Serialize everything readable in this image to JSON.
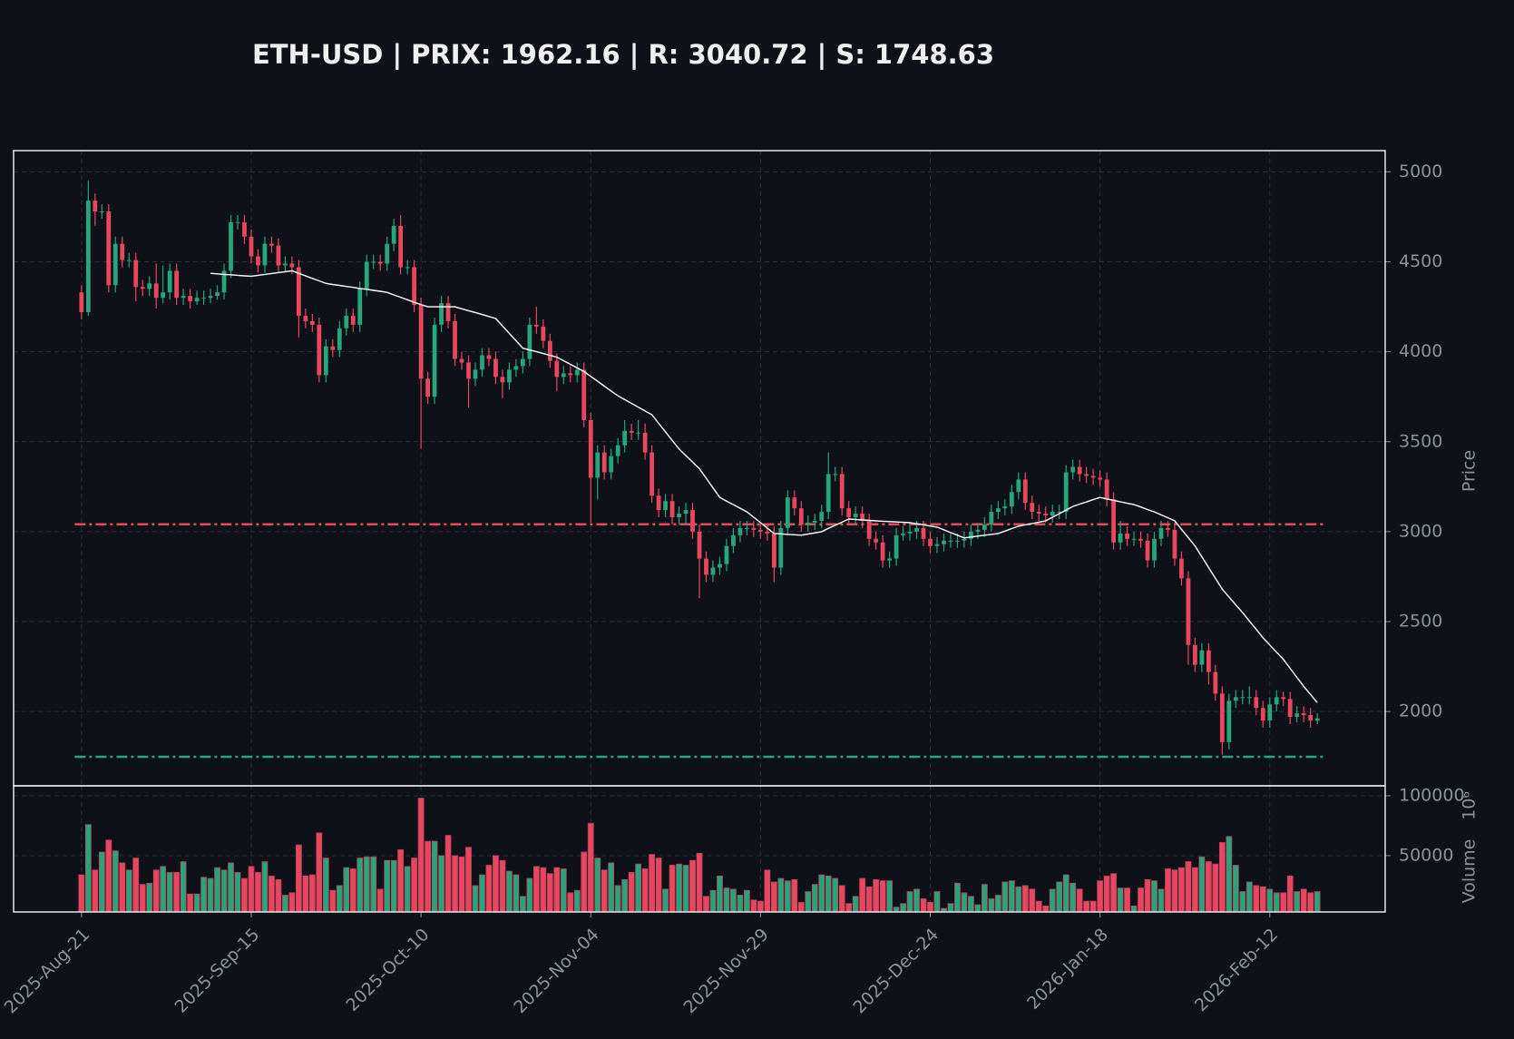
{
  "chart_data": {
    "type": "candlestick",
    "title": "ETH-USD | PRIX: 1962.16 | R: 3040.72 | S: 1748.63",
    "x": [
      "2025-08-21",
      "2025-08-22",
      "2025-08-23",
      "2025-08-24",
      "2025-08-25",
      "2025-08-26",
      "2025-08-27",
      "2025-08-28",
      "2025-08-29",
      "2025-08-30",
      "2025-08-31",
      "2025-09-01",
      "2025-09-02",
      "2025-09-03",
      "2025-09-04",
      "2025-09-05",
      "2025-09-06",
      "2025-09-07",
      "2025-09-08",
      "2025-09-09",
      "2025-09-10",
      "2025-09-11",
      "2025-09-12",
      "2025-09-13",
      "2025-09-14",
      "2025-09-15",
      "2025-09-16",
      "2025-09-17",
      "2025-09-18",
      "2025-09-19",
      "2025-09-20",
      "2025-09-21",
      "2025-09-22",
      "2025-09-23",
      "2025-09-24",
      "2025-09-25",
      "2025-09-26",
      "2025-09-27",
      "2025-09-28",
      "2025-09-29",
      "2025-09-30",
      "2025-10-01",
      "2025-10-02",
      "2025-10-03",
      "2025-10-04",
      "2025-10-05",
      "2025-10-06",
      "2025-10-07",
      "2025-10-08",
      "2025-10-09",
      "2025-10-10",
      "2025-10-11",
      "2025-10-12",
      "2025-10-13",
      "2025-10-14",
      "2025-10-15",
      "2025-10-16",
      "2025-10-17",
      "2025-10-18",
      "2025-10-19",
      "2025-10-20",
      "2025-10-21",
      "2025-10-22",
      "2025-10-23",
      "2025-10-24",
      "2025-10-25",
      "2025-10-26",
      "2025-10-27",
      "2025-10-28",
      "2025-10-29",
      "2025-10-30",
      "2025-10-31",
      "2025-11-01",
      "2025-11-02",
      "2025-11-03",
      "2025-11-04",
      "2025-11-05",
      "2025-11-06",
      "2025-11-07",
      "2025-11-08",
      "2025-11-09",
      "2025-11-10",
      "2025-11-11",
      "2025-11-12",
      "2025-11-13",
      "2025-11-14",
      "2025-11-15",
      "2025-11-16",
      "2025-11-17",
      "2025-11-18",
      "2025-11-19",
      "2025-11-20",
      "2025-11-21",
      "2025-11-22",
      "2025-11-23",
      "2025-11-24",
      "2025-11-25",
      "2025-11-26",
      "2025-11-27",
      "2025-11-28",
      "2025-11-29",
      "2025-11-30",
      "2025-12-01",
      "2025-12-02",
      "2025-12-03",
      "2025-12-04",
      "2025-12-05",
      "2025-12-06",
      "2025-12-07",
      "2025-12-08",
      "2025-12-09",
      "2025-12-10",
      "2025-12-11",
      "2025-12-12",
      "2025-12-13",
      "2025-12-14",
      "2025-12-15",
      "2025-12-16",
      "2025-12-17",
      "2025-12-18",
      "2025-12-19",
      "2025-12-20",
      "2025-12-21",
      "2025-12-22",
      "2025-12-23",
      "2025-12-24",
      "2025-12-25",
      "2025-12-26",
      "2025-12-27",
      "2025-12-28",
      "2025-12-29",
      "2025-12-30",
      "2025-12-31",
      "2026-01-01",
      "2026-01-02",
      "2026-01-03",
      "2026-01-04",
      "2026-01-05",
      "2026-01-06",
      "2026-01-07",
      "2026-01-08",
      "2026-01-09",
      "2026-01-10",
      "2026-01-11",
      "2026-01-12",
      "2026-01-13",
      "2026-01-14",
      "2026-01-15",
      "2026-01-16",
      "2026-01-17",
      "2026-01-18",
      "2026-01-19",
      "2026-01-20",
      "2026-01-21",
      "2026-01-22",
      "2026-01-23",
      "2026-01-24",
      "2026-01-25",
      "2026-01-26",
      "2026-01-27",
      "2026-01-28",
      "2026-01-29",
      "2026-01-30",
      "2026-01-31",
      "2026-02-01",
      "2026-02-02",
      "2026-02-03",
      "2026-02-04",
      "2026-02-05",
      "2026-02-06",
      "2026-02-07",
      "2026-02-08",
      "2026-02-09",
      "2026-02-10",
      "2026-02-11",
      "2026-02-12",
      "2026-02-13",
      "2026-02-14",
      "2026-02-15",
      "2026-02-16",
      "2026-02-17",
      "2026-02-18",
      "2026-02-19"
    ],
    "open": [
      4330,
      4220,
      4840,
      4780,
      4780,
      4370,
      4600,
      4510,
      4510,
      4360,
      4350,
      4380,
      4300,
      4330,
      4450,
      4300,
      4310,
      4280,
      4300,
      4300,
      4310,
      4330,
      4450,
      4720,
      4720,
      4640,
      4530,
      4480,
      4600,
      4590,
      4480,
      4490,
      4470,
      4200,
      4170,
      4150,
      3870,
      4030,
      4010,
      4130,
      4200,
      4150,
      4350,
      4500,
      4500,
      4490,
      4600,
      4700,
      4470,
      4470,
      4260,
      3850,
      3750,
      4150,
      4270,
      4170,
      3960,
      3940,
      3850,
      3900,
      3980,
      3960,
      3860,
      3830,
      3900,
      3920,
      3960,
      4150,
      4140,
      4060,
      3950,
      3860,
      3880,
      3870,
      3900,
      3620,
      3300,
      3440,
      3330,
      3420,
      3480,
      3560,
      3550,
      3550,
      3440,
      3200,
      3120,
      3170,
      3080,
      3100,
      3120,
      3000,
      2850,
      2760,
      2800,
      2820,
      2920,
      2980,
      3020,
      3020,
      3010,
      3000,
      2990,
      2800,
      3020,
      3190,
      3130,
      3040,
      3050,
      3060,
      3110,
      3320,
      3320,
      3130,
      3080,
      3100,
      3060,
      2960,
      2940,
      2840,
      2850,
      2980,
      2990,
      3000,
      3020,
      2960,
      2920,
      2930,
      2950,
      2950,
      2950,
      2960,
      3000,
      3010,
      3040,
      3110,
      3130,
      3140,
      3220,
      3290,
      3160,
      3110,
      3100,
      3090,
      3110,
      3110,
      3330,
      3360,
      3320,
      3310,
      3300,
      3290,
      3180,
      2940,
      2990,
      2960,
      2960,
      2950,
      2840,
      2960,
      3020,
      3010,
      2850,
      2740,
      2370,
      2260,
      2340,
      2220,
      2100,
      1830,
      2060,
      2080,
      2080,
      2080,
      2020,
      1950,
      2040,
      2080,
      2070,
      1970,
      1990,
      1980,
      1950
    ],
    "high": [
      4370,
      4950,
      4880,
      4820,
      4820,
      4640,
      4640,
      4550,
      4550,
      4400,
      4420,
      4490,
      4480,
      4490,
      4490,
      4350,
      4350,
      4340,
      4340,
      4350,
      4370,
      4490,
      4760,
      4760,
      4760,
      4680,
      4570,
      4640,
      4640,
      4630,
      4530,
      4530,
      4510,
      4240,
      4210,
      4190,
      4070,
      4070,
      4170,
      4240,
      4240,
      4390,
      4540,
      4540,
      4540,
      4640,
      4740,
      4760,
      4510,
      4510,
      4300,
      3890,
      4190,
      4310,
      4310,
      4210,
      4000,
      3980,
      3940,
      4020,
      4020,
      4000,
      3900,
      3940,
      3960,
      4000,
      4190,
      4250,
      4180,
      4100,
      3990,
      3920,
      3920,
      3940,
      3940,
      3660,
      3480,
      3480,
      3460,
      3520,
      3620,
      3600,
      3620,
      3600,
      3480,
      3240,
      3210,
      3210,
      3140,
      3160,
      3160,
      3040,
      2890,
      2840,
      2860,
      2960,
      3020,
      3060,
      3060,
      3060,
      3050,
      3040,
      3030,
      3060,
      3230,
      3230,
      3170,
      3090,
      3100,
      3150,
      3440,
      3360,
      3360,
      3170,
      3140,
      3140,
      3100,
      3000,
      2980,
      2890,
      3020,
      3030,
      3040,
      3060,
      3060,
      3000,
      2970,
      2990,
      2990,
      2990,
      3000,
      3040,
      3050,
      3080,
      3150,
      3170,
      3180,
      3260,
      3330,
      3330,
      3200,
      3150,
      3140,
      3150,
      3150,
      3370,
      3400,
      3400,
      3360,
      3350,
      3340,
      3330,
      3220,
      3060,
      3030,
      3000,
      3000,
      2990,
      3000,
      3060,
      3060,
      3050,
      2890,
      2780,
      2410,
      2380,
      2380,
      2260,
      2140,
      2100,
      2120,
      2120,
      2140,
      2120,
      2060,
      2080,
      2120,
      2110,
      2110,
      2030,
      2030,
      2020,
      1990
    ],
    "low": [
      4180,
      4200,
      4700,
      4740,
      4330,
      4330,
      4470,
      4470,
      4280,
      4310,
      4310,
      4240,
      4270,
      4290,
      4260,
      4260,
      4240,
      4260,
      4260,
      4270,
      4290,
      4290,
      4410,
      4680,
      4600,
      4490,
      4440,
      4440,
      4550,
      4440,
      4440,
      4430,
      4080,
      4130,
      4110,
      3830,
      3830,
      3970,
      3970,
      4090,
      4110,
      4110,
      4310,
      4460,
      4450,
      4450,
      4560,
      4430,
      4430,
      4220,
      3460,
      3710,
      3710,
      4110,
      4130,
      3920,
      3900,
      3690,
      3810,
      3860,
      3920,
      3820,
      3740,
      3790,
      3860,
      3880,
      3920,
      4100,
      4020,
      3910,
      3780,
      3820,
      3830,
      3830,
      3580,
      3050,
      3180,
      3290,
      3290,
      3380,
      3440,
      3510,
      3510,
      3400,
      3160,
      3080,
      3080,
      3040,
      3040,
      3040,
      2960,
      2630,
      2720,
      2720,
      2760,
      2780,
      2880,
      2940,
      2980,
      2970,
      2960,
      2950,
      2720,
      2760,
      2980,
      3090,
      3000,
      3000,
      3010,
      3020,
      3070,
      3280,
      3090,
      3040,
      3040,
      3020,
      2920,
      2900,
      2800,
      2800,
      2810,
      2950,
      2950,
      2960,
      2920,
      2880,
      2880,
      2890,
      2910,
      2910,
      2910,
      2920,
      2960,
      2970,
      3000,
      3070,
      3090,
      3100,
      3180,
      3120,
      3070,
      3060,
      3050,
      3050,
      3070,
      3070,
      3290,
      3280,
      3270,
      3260,
      3250,
      3140,
      2900,
      2900,
      2920,
      2920,
      2910,
      2800,
      2800,
      2920,
      2970,
      2810,
      2700,
      2260,
      2220,
      2220,
      2150,
      2060,
      1760,
      1790,
      2020,
      2040,
      2040,
      1980,
      1910,
      1910,
      2000,
      2030,
      1930,
      1940,
      1940,
      1910,
      1930
    ],
    "close": [
      4220,
      4840,
      4780,
      4780,
      4370,
      4600,
      4510,
      4510,
      4360,
      4350,
      4380,
      4300,
      4330,
      4450,
      4300,
      4310,
      4280,
      4300,
      4300,
      4310,
      4330,
      4450,
      4720,
      4720,
      4640,
      4530,
      4480,
      4600,
      4590,
      4480,
      4490,
      4470,
      4200,
      4170,
      4150,
      3870,
      4030,
      4010,
      4130,
      4200,
      4150,
      4350,
      4500,
      4500,
      4490,
      4600,
      4700,
      4470,
      4470,
      4260,
      3850,
      3750,
      4150,
      4270,
      4170,
      3960,
      3940,
      3850,
      3900,
      3980,
      3960,
      3860,
      3830,
      3900,
      3920,
      3960,
      4150,
      4140,
      4060,
      3950,
      3860,
      3880,
      3870,
      3900,
      3620,
      3300,
      3440,
      3330,
      3420,
      3480,
      3560,
      3550,
      3550,
      3440,
      3200,
      3120,
      3170,
      3080,
      3100,
      3120,
      3000,
      2850,
      2760,
      2800,
      2820,
      2920,
      2980,
      3020,
      3020,
      3010,
      3000,
      2990,
      2800,
      3020,
      3190,
      3130,
      3040,
      3050,
      3060,
      3110,
      3320,
      3320,
      3130,
      3080,
      3100,
      3060,
      2960,
      2940,
      2840,
      2850,
      2980,
      2990,
      3000,
      3020,
      2960,
      2920,
      2930,
      2950,
      2950,
      2950,
      2960,
      3000,
      3010,
      3040,
      3110,
      3130,
      3140,
      3220,
      3290,
      3160,
      3110,
      3100,
      3090,
      3110,
      3110,
      3330,
      3360,
      3320,
      3310,
      3300,
      3290,
      3180,
      2940,
      2990,
      2960,
      2960,
      2950,
      2840,
      2960,
      3020,
      3010,
      2850,
      2740,
      2370,
      2260,
      2340,
      2220,
      2100,
      1830,
      2060,
      2080,
      2080,
      2080,
      2020,
      1950,
      2040,
      2080,
      2070,
      1970,
      1990,
      1980,
      1950,
      1962.16
    ],
    "up_color": "#26a67a",
    "down_color": "#e8475f",
    "ylim": [
      1587,
      5118
    ],
    "yticks": [
      2000,
      2500,
      3000,
      3500,
      4000,
      4500,
      5000
    ],
    "ylabel": "Price",
    "xlim": [
      "2025-08-11",
      "2026-03-01"
    ],
    "xticks": [
      {
        "value": "2025-08-21",
        "label": "2025-Aug-21"
      },
      {
        "value": "2025-09-15",
        "label": "2025-Sep-15"
      },
      {
        "value": "2025-10-10",
        "label": "2025-Oct-10"
      },
      {
        "value": "2025-11-04",
        "label": "2025-Nov-04"
      },
      {
        "value": "2025-11-29",
        "label": "2025-Nov-29"
      },
      {
        "value": "2025-12-24",
        "label": "2025-Dec-24"
      },
      {
        "value": "2026-01-18",
        "label": "2026-Jan-18"
      },
      {
        "value": "2026-02-12",
        "label": "2026-Feb-12"
      }
    ],
    "grid": true,
    "moving_average": {
      "color": "#ffffff",
      "values": [
        null,
        null,
        null,
        null,
        null,
        null,
        null,
        null,
        null,
        null,
        null,
        null,
        null,
        null,
        null,
        null,
        null,
        null,
        null,
        4436,
        4433,
        4430,
        4428,
        4425,
        4422,
        4420,
        4425,
        4430,
        4435,
        4440,
        4445,
        4450,
        4436,
        4422,
        4408,
        4394,
        4380,
        4374,
        4369,
        4363,
        4358,
        4352,
        4347,
        4341,
        4336,
        4330,
        4316,
        4303,
        4289,
        4275,
        4262,
        4250,
        4250,
        4250,
        4250,
        4250,
        4239,
        4228,
        4218,
        4207,
        4196,
        4185,
        4144,
        4102,
        4061,
        4020,
        4010,
        4000,
        3990,
        3980,
        3970,
        3950,
        3930,
        3910,
        3890,
        3863,
        3836,
        3809,
        3782,
        3755,
        3734,
        3713,
        3692,
        3671,
        3650,
        3602,
        3555,
        3507,
        3460,
        3423,
        3387,
        3350,
        3297,
        3243,
        3190,
        3170,
        3150,
        3130,
        3110,
        3080,
        3050,
        3020,
        2990,
        2988,
        2985,
        2983,
        2980,
        2987,
        2993,
        3000,
        3018,
        3035,
        3053,
        3070,
        3068,
        3065,
        3063,
        3060,
        3058,
        3056,
        3054,
        3052,
        3050,
        3044,
        3038,
        3031,
        3025,
        3010,
        2995,
        2980,
        2965,
        2970,
        2975,
        2980,
        2985,
        2990,
        3003,
        3017,
        3030,
        3038,
        3045,
        3053,
        3060,
        3080,
        3100,
        3120,
        3140,
        3153,
        3165,
        3178,
        3190,
        3182,
        3174,
        3166,
        3158,
        3150,
        3137,
        3123,
        3110,
        3093,
        3077,
        3060,
        3013,
        2967,
        2920,
        2860,
        2800,
        2740,
        2680,
        2637,
        2593,
        2550,
        2503,
        2457,
        2410,
        2370,
        2330,
        2290,
        2240,
        2190,
        2140,
        2095,
        2050
      ]
    },
    "resistance": {
      "value": 3040.72,
      "color": "#e8475f"
    },
    "support": {
      "value": 1748.63,
      "color": "#26a67a"
    },
    "volume": {
      "ylabel": "Volume",
      "offset_label": "10⁶",
      "ylim": [
        3000,
        108300
      ],
      "yticks": [
        50000,
        100000
      ],
      "values": [
        34000,
        76000,
        38000,
        53000,
        63000,
        54000,
        44000,
        38000,
        48000,
        26000,
        27000,
        38000,
        41000,
        36000,
        36000,
        45000,
        18000,
        18000,
        32000,
        31000,
        40000,
        38000,
        44000,
        36000,
        31000,
        41000,
        36000,
        45000,
        33000,
        30000,
        17000,
        19000,
        59000,
        33000,
        34000,
        69000,
        48000,
        21000,
        25000,
        40000,
        39000,
        48000,
        49000,
        49000,
        22000,
        46000,
        46000,
        55000,
        41000,
        48000,
        98000,
        62000,
        62000,
        50000,
        67000,
        50000,
        49000,
        57000,
        25000,
        34000,
        42000,
        50000,
        46000,
        37000,
        34000,
        16000,
        31000,
        41000,
        40000,
        35000,
        40000,
        39000,
        19000,
        21000,
        53000,
        77000,
        48000,
        38000,
        44000,
        25000,
        30000,
        36000,
        43000,
        39000,
        51000,
        48000,
        22000,
        42000,
        43000,
        42000,
        46000,
        52000,
        16000,
        21000,
        33000,
        23000,
        22000,
        17000,
        21000,
        13000,
        12000,
        38000,
        28000,
        31000,
        29000,
        30000,
        11000,
        20000,
        26000,
        34000,
        33000,
        31000,
        25000,
        10000,
        16000,
        31000,
        24000,
        30000,
        29000,
        29000,
        7000,
        10000,
        20000,
        22000,
        14000,
        11000,
        20000,
        6000,
        10000,
        27000,
        19000,
        16000,
        9000,
        26000,
        14000,
        17000,
        28000,
        29000,
        24000,
        25000,
        22000,
        12000,
        8000,
        22000,
        28000,
        34000,
        27000,
        22000,
        12000,
        12000,
        29000,
        33000,
        35000,
        23000,
        23000,
        8000,
        23000,
        30000,
        29000,
        22000,
        39000,
        38000,
        40000,
        45000,
        40000,
        49000,
        45000,
        43000,
        61000,
        66000,
        42000,
        20000,
        28000,
        25000,
        24000,
        22000,
        19000,
        19000,
        33000,
        20000,
        22000,
        19000,
        20000
      ]
    }
  }
}
